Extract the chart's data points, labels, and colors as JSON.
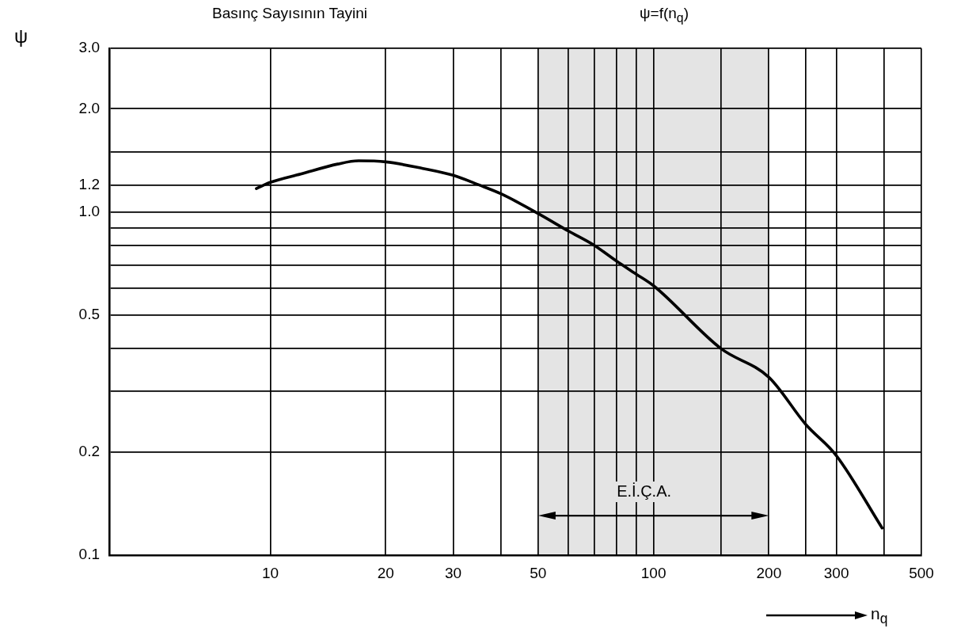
{
  "chart_data": {
    "type": "line",
    "title": "Basınç Sayısının Tayini",
    "subtitle": "ψ=f(n$_{q}$)",
    "xlabel": "n$_{q}$",
    "ylabel": "ψ",
    "x": [
      9.2,
      10,
      12,
      15,
      17,
      20,
      25,
      30,
      35,
      40,
      50,
      60,
      70,
      80,
      90,
      100,
      150,
      200,
      250,
      300,
      395
    ],
    "series": [
      {
        "color": "#000000",
        "values": [
          1.17,
          1.22,
          1.29,
          1.38,
          1.41,
          1.4,
          1.34,
          1.28,
          1.2,
          1.13,
          0.99,
          0.88,
          0.8,
          0.72,
          0.66,
          0.61,
          0.4,
          0.33,
          0.24,
          0.195,
          0.12
        ]
      }
    ],
    "log": "xy",
    "xlim": [
      3.8,
      500
    ],
    "ylim": [
      0.1,
      3
    ],
    "xticks": [
      10,
      20,
      30,
      {
        "value": 40,
        "label": null
      },
      50,
      {
        "value": 60,
        "label": null
      },
      {
        "value": 70,
        "label": null
      },
      {
        "value": 80,
        "label": null
      },
      {
        "value": 90,
        "label": null
      },
      100,
      {
        "value": 150,
        "label": null
      },
      200,
      {
        "value": 250,
        "label": null
      },
      300,
      {
        "value": 400,
        "label": null
      },
      500
    ],
    "yticks": [
      0.1,
      0.2,
      {
        "value": 0.3,
        "label": null
      },
      {
        "value": 0.4,
        "label": null
      },
      0.5,
      {
        "value": 0.6,
        "label": null
      },
      {
        "value": 0.7,
        "label": null
      },
      {
        "value": 0.8,
        "label": null
      },
      {
        "value": 0.9,
        "label": null
      },
      {
        "value": 1,
        "label": "1.0"
      },
      1.2,
      {
        "value": 1.5,
        "label": null
      },
      {
        "value": 2,
        "label": "2.0"
      },
      {
        "value": 3,
        "label": "3.0"
      }
    ],
    "grid": true,
    "legend": false,
    "marker": "none",
    "line_style": "solid",
    "bands": [
      {
        "axis": "x",
        "from": 50,
        "to": 200,
        "label": "E.İ.Ç.A.",
        "color": "#e4e4e4"
      }
    ]
  }
}
